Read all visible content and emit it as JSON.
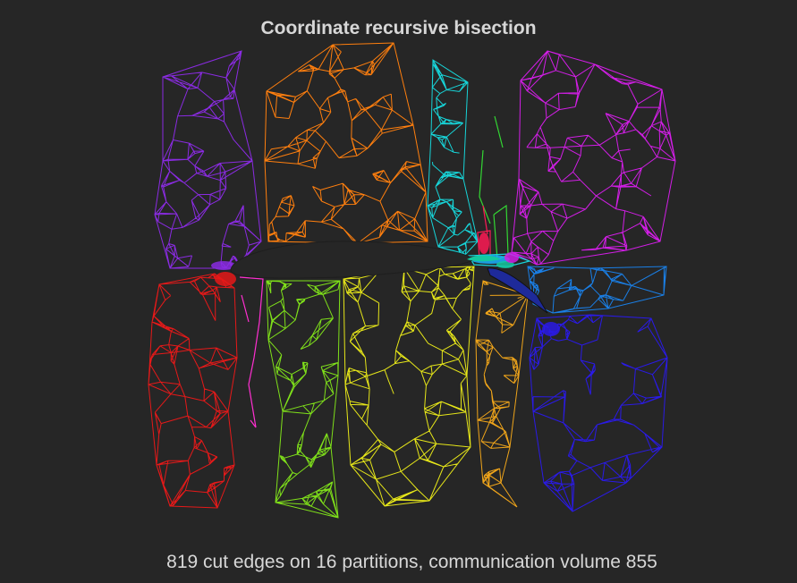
{
  "diagram": {
    "title": "Coordinate recursive bisection",
    "caption": "819 cut edges on 16 partitions, communication volume 855",
    "background": "#262626",
    "airfoil_fill": "#262626",
    "partitions": [
      {
        "name": "violet",
        "color": "#8a2be2"
      },
      {
        "name": "orange",
        "color": "#ff7f0e"
      },
      {
        "name": "cyan",
        "color": "#17d4d8"
      },
      {
        "name": "crimson",
        "color": "#ff1a55"
      },
      {
        "name": "green",
        "color": "#33d633"
      },
      {
        "name": "magenta",
        "color": "#d21ee6"
      },
      {
        "name": "red",
        "color": "#e61919"
      },
      {
        "name": "pink",
        "color": "#ff2fd1"
      },
      {
        "name": "lime",
        "color": "#7fe01a"
      },
      {
        "name": "yellow",
        "color": "#e6e619"
      },
      {
        "name": "amber",
        "color": "#f0a51a"
      },
      {
        "name": "azure",
        "color": "#1a7fe6"
      },
      {
        "name": "blue",
        "color": "#2a1ae6"
      },
      {
        "name": "teal",
        "color": "#14c8a0"
      },
      {
        "name": "navy",
        "color": "#1e2a9a"
      },
      {
        "name": "sky",
        "color": "#1ab0ff"
      }
    ]
  }
}
